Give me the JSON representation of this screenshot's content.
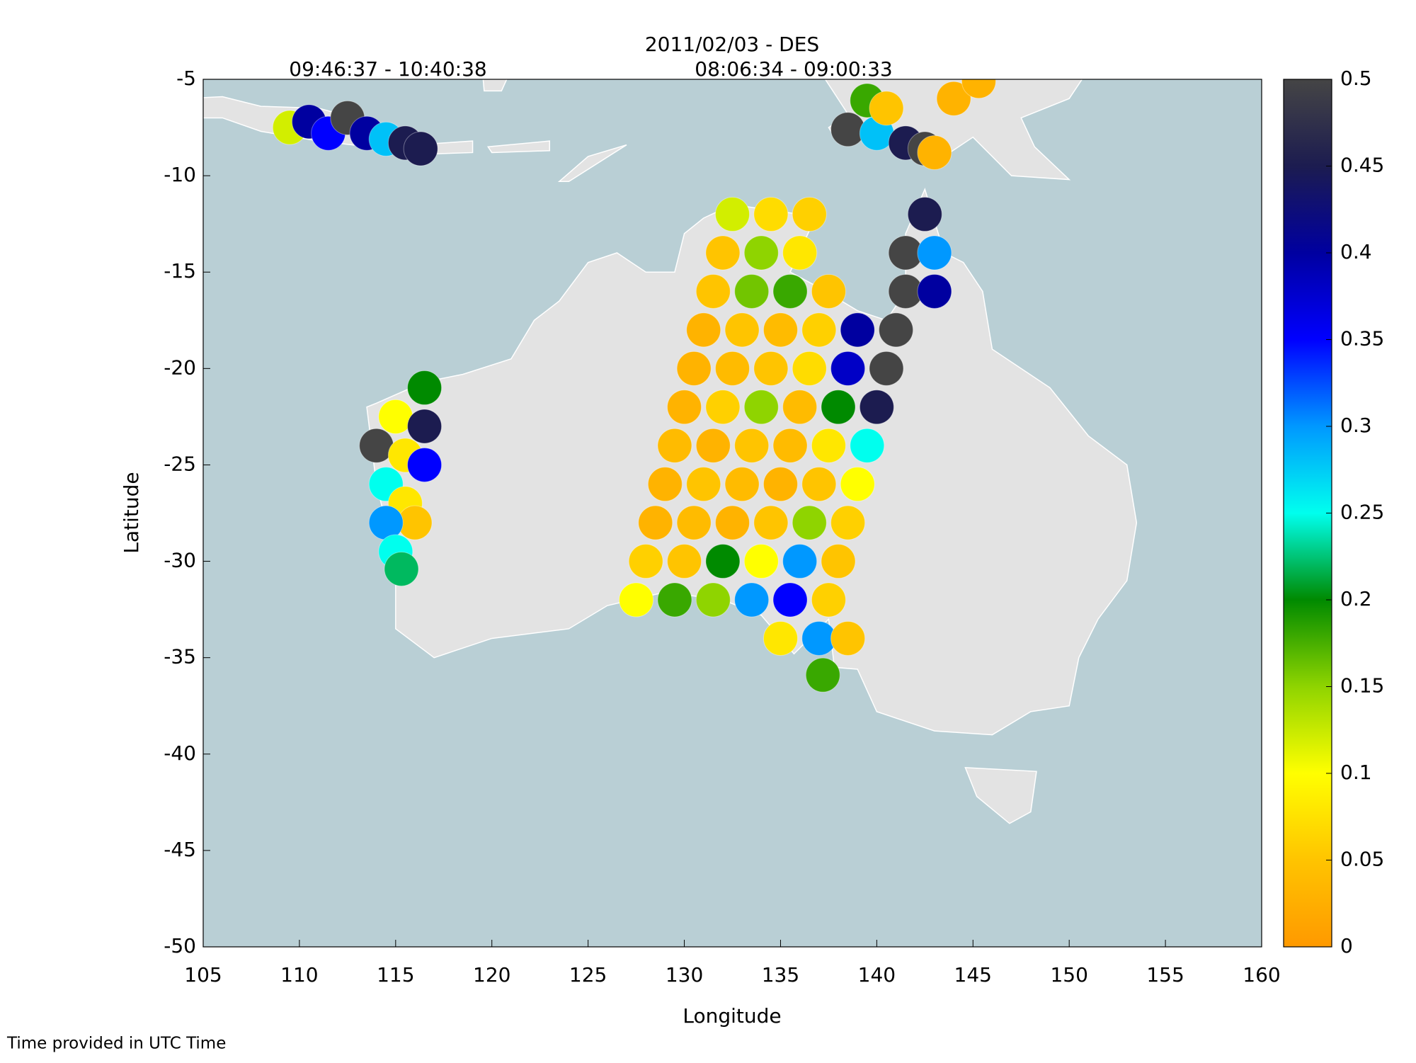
{
  "chart_data": {
    "type": "scatter",
    "title": "2011/02/03 - DES",
    "annotations": [
      "09:46:37 - 10:40:38",
      "08:06:34 - 09:00:33"
    ],
    "x_label": "Longitude",
    "y_label": "Latitude",
    "note": "Time provided in UTC Time",
    "xlim": [
      105,
      160
    ],
    "xticks": [
      105,
      110,
      115,
      120,
      125,
      130,
      135,
      140,
      145,
      150,
      155,
      160
    ],
    "ylim": [
      -50,
      -5
    ],
    "yticks": [
      -5,
      -10,
      -15,
      -20,
      -25,
      -30,
      -35,
      -40,
      -45,
      -50
    ],
    "clim": [
      0,
      0.5
    ],
    "cticks": [
      0,
      0.05,
      0.1,
      0.15,
      0.2,
      0.25,
      0.3,
      0.35,
      0.4,
      0.45,
      0.5
    ],
    "colormap": [
      "#ff9900",
      "#ffc400",
      "#ffff00",
      "#8fd400",
      "#008a00",
      "#00ffee",
      "#0098ff",
      "#0000ff",
      "#0000a0",
      "#1c1c50",
      "#454545"
    ],
    "x": [
      132.5,
      134.5,
      136.5,
      142.5,
      132,
      134,
      136,
      141.5,
      143,
      131.5,
      133.5,
      135.5,
      137.5,
      141.5,
      143,
      131,
      133,
      135,
      137,
      139,
      141,
      130.5,
      132.5,
      134.5,
      136.5,
      138.5,
      140.5,
      130,
      132,
      134,
      136,
      138,
      140,
      129.5,
      131.5,
      133.5,
      135.5,
      137.5,
      139.5,
      129,
      131,
      133,
      135,
      137,
      139,
      128.5,
      130.5,
      132.5,
      134.5,
      136.5,
      138.5,
      128,
      130,
      132,
      134,
      136,
      138,
      127.5,
      129.5,
      131.5,
      133.5,
      135.5,
      137.5,
      135,
      137,
      138.5,
      137.2,
      116.5,
      115,
      116.5,
      114,
      115.5,
      116.5,
      114.5,
      115.5,
      116,
      114.5,
      115,
      115.3,
      109.5,
      110.5,
      111.5,
      112.5,
      113.5,
      114.5,
      115.5,
      116.3,
      138.5,
      139.5,
      140,
      140.5,
      141.5,
      142.5,
      143,
      144,
      145.3
    ],
    "y": [
      -12,
      -12,
      -12,
      -12,
      -14,
      -14,
      -14,
      -14,
      -14,
      -16,
      -16,
      -16,
      -16,
      -16,
      -16,
      -18,
      -18,
      -18,
      -18,
      -18,
      -18,
      -20,
      -20,
      -20,
      -20,
      -20,
      -20,
      -22,
      -22,
      -22,
      -22,
      -22,
      -22,
      -24,
      -24,
      -24,
      -24,
      -24,
      -24,
      -26,
      -26,
      -26,
      -26,
      -26,
      -26,
      -28,
      -28,
      -28,
      -28,
      -28,
      -28,
      -30,
      -30,
      -30,
      -30,
      -30,
      -30,
      -32,
      -32,
      -32,
      -32,
      -32,
      -32,
      -34,
      -34,
      -34,
      -35.9,
      -21,
      -22.5,
      -23,
      -24,
      -24.5,
      -25,
      -26,
      -27,
      -28,
      -28,
      -29.5,
      -30.4,
      -7.5,
      -7.2,
      -7.8,
      -7,
      -7.8,
      -8.1,
      -8.3,
      -8.6,
      -7.6,
      -6.1,
      -7.8,
      -6.5,
      -8.3,
      -8.6,
      -8.8,
      -6,
      -5.1
    ],
    "values": [
      0.12,
      0.07,
      0.06,
      0.45,
      0.05,
      0.15,
      0.08,
      0.5,
      0.3,
      0.05,
      0.16,
      0.18,
      0.05,
      0.5,
      0.4,
      0.03,
      0.05,
      0.04,
      0.06,
      0.4,
      0.5,
      0.03,
      0.04,
      0.05,
      0.07,
      0.38,
      0.5,
      0.03,
      0.06,
      0.15,
      0.04,
      0.2,
      0.45,
      0.04,
      0.03,
      0.05,
      0.04,
      0.08,
      0.25,
      0.03,
      0.05,
      0.04,
      0.03,
      0.05,
      0.1,
      0.03,
      0.04,
      0.03,
      0.05,
      0.15,
      0.06,
      0.06,
      0.05,
      0.2,
      0.1,
      0.3,
      0.05,
      0.1,
      0.18,
      0.15,
      0.3,
      0.35,
      0.06,
      0.08,
      0.3,
      0.05,
      0.18,
      0.2,
      0.1,
      0.45,
      0.5,
      0.08,
      0.35,
      0.25,
      0.08,
      0.05,
      0.3,
      0.25,
      0.22,
      0.12,
      0.4,
      0.35,
      0.5,
      0.4,
      0.28,
      0.45,
      0.45,
      0.5,
      0.18,
      0.28,
      0.05,
      0.45,
      0.5,
      0.03,
      0.03,
      0.03
    ]
  }
}
